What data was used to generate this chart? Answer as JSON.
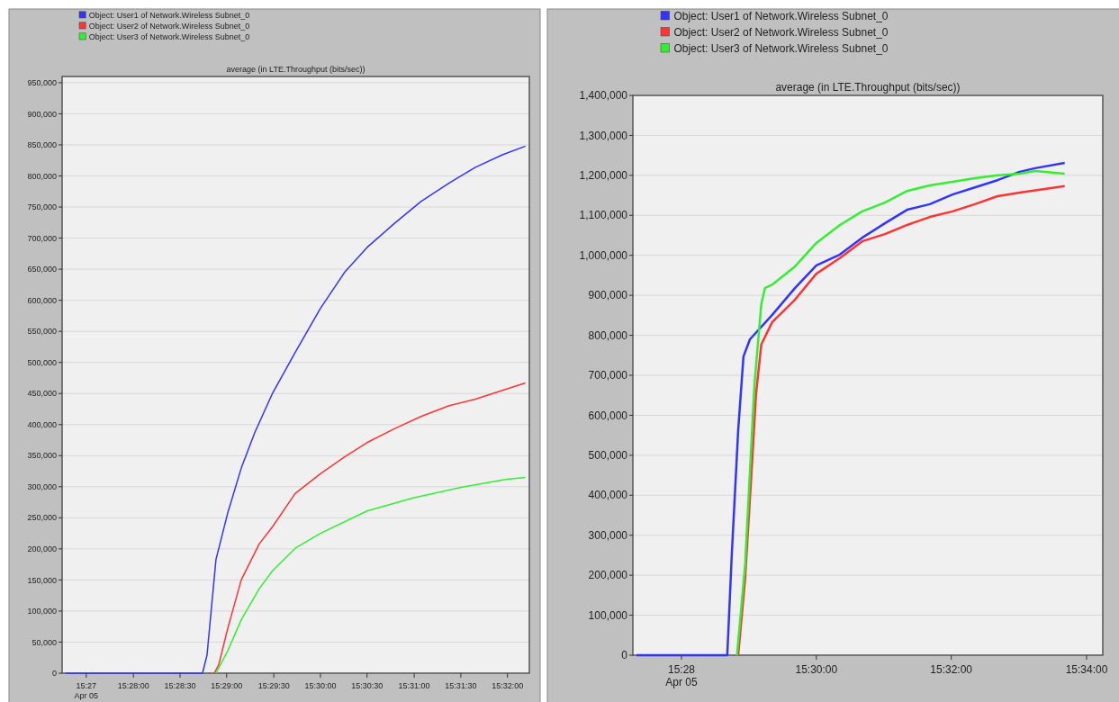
{
  "chart_data": [
    {
      "type": "line",
      "title": "average (in LTE.Throughput (bits/sec))",
      "legend": "top",
      "grid": "y",
      "marker": "none",
      "line_style": "solid",
      "xlim": [
        15.454,
        15.5372
      ],
      "ylim": [
        0,
        960000
      ],
      "xticks": [
        {
          "value": 15.4583,
          "label": "15:27\nApr 05"
        },
        {
          "value": 15.4667,
          "label": "15:28:00"
        },
        {
          "value": 15.475,
          "label": "15:28:30"
        },
        {
          "value": 15.4833,
          "label": "15:29:00"
        },
        {
          "value": 15.4917,
          "label": "15:29:30"
        },
        {
          "value": 15.5,
          "label": "15:30:00"
        },
        {
          "value": 15.5083,
          "label": "15:30:30"
        },
        {
          "value": 15.5167,
          "label": "15:31:00"
        },
        {
          "value": 15.525,
          "label": "15:31:30"
        },
        {
          "value": 15.5333,
          "label": "15:32:00"
        }
      ],
      "yticks": [
        0,
        {
          "value": 50000,
          "label": "50,000"
        },
        {
          "value": 100000,
          "label": "100,000"
        },
        {
          "value": 150000,
          "label": "150,000"
        },
        {
          "value": 200000,
          "label": "200,000"
        },
        {
          "value": 250000,
          "label": "250,000"
        },
        {
          "value": 300000,
          "label": "300,000"
        },
        {
          "value": 350000,
          "label": "350,000"
        },
        {
          "value": 400000,
          "label": "400,000"
        },
        {
          "value": 450000,
          "label": "450,000"
        },
        {
          "value": 500000,
          "label": "500,000"
        },
        {
          "value": 550000,
          "label": "550,000"
        },
        {
          "value": 600000,
          "label": "600,000"
        },
        {
          "value": 650000,
          "label": "650,000"
        },
        {
          "value": 700000,
          "label": "700,000"
        },
        {
          "value": 750000,
          "label": "750,000"
        },
        {
          "value": 800000,
          "label": "800,000"
        },
        {
          "value": 850000,
          "label": "850,000"
        },
        {
          "value": 900000,
          "label": "900,000"
        },
        {
          "value": 950000,
          "label": "950,000"
        }
      ],
      "series": [
        {
          "name": "Object: User1 of Network.Wireless Subnet_0",
          "color": "#3333ff",
          "x": [
            15.4546,
            15.479,
            15.4798,
            15.4814,
            15.4835,
            15.4859,
            15.4883,
            15.4915,
            15.4955,
            15.5,
            15.5043,
            15.5083,
            15.5131,
            15.5179,
            15.5228,
            15.5276,
            15.5324,
            15.5365
          ],
          "values": [
            0,
            0,
            29000,
            183000,
            258000,
            330000,
            387000,
            451000,
            516000,
            587000,
            645000,
            685000,
            723000,
            759000,
            788000,
            814000,
            834000,
            848000
          ]
        },
        {
          "name": "Object: User2 of Network.Wireless Subnet_0",
          "color": "#ff3333",
          "x": [
            15.4811,
            15.4819,
            15.4835,
            15.4859,
            15.4891,
            15.4915,
            15.4955,
            15.5,
            15.5043,
            15.5083,
            15.5131,
            15.5179,
            15.5228,
            15.5276,
            15.5324,
            15.5365
          ],
          "values": [
            0,
            14000,
            72000,
            150000,
            208000,
            236000,
            289000,
            321000,
            348000,
            371000,
            393000,
            413000,
            430000,
            441000,
            455000,
            467000
          ]
        },
        {
          "name": "Object: User3 of Network.Wireless Subnet_0",
          "color": "#33ee33",
          "x": [
            15.4814,
            15.4835,
            15.4859,
            15.4891,
            15.4915,
            15.4955,
            15.5,
            15.5083,
            15.5165,
            15.525,
            15.5332,
            15.5365
          ],
          "values": [
            0,
            36000,
            86000,
            136000,
            165000,
            201000,
            225000,
            261000,
            282000,
            299000,
            312000,
            315000
          ]
        }
      ]
    },
    {
      "type": "line",
      "title": "average (in LTE.Throughput (bits/sec))",
      "legend": "top",
      "grid": "y",
      "marker": "none",
      "line_style": "solid",
      "xlim": [
        15.4547,
        15.5707
      ],
      "ylim": [
        0,
        1400000
      ],
      "xticks": [
        {
          "value": 15.4667,
          "label": "15:28\nApr 05"
        },
        {
          "value": 15.5,
          "label": "15:30:00"
        },
        {
          "value": 15.5333,
          "label": "15:32:00"
        },
        {
          "value": 15.5667,
          "label": "15:34:00"
        }
      ],
      "yticks": [
        0,
        {
          "value": 100000,
          "label": "100,000"
        },
        {
          "value": 200000,
          "label": "200,000"
        },
        {
          "value": 300000,
          "label": "300,000"
        },
        {
          "value": 400000,
          "label": "400,000"
        },
        {
          "value": 500000,
          "label": "500,000"
        },
        {
          "value": 600000,
          "label": "600,000"
        },
        {
          "value": 700000,
          "label": "700,000"
        },
        {
          "value": 800000,
          "label": "800,000"
        },
        {
          "value": 900000,
          "label": "900,000"
        },
        {
          "value": 1000000,
          "label": "1,000,000"
        },
        {
          "value": 1100000,
          "label": "1,100,000"
        },
        {
          "value": 1200000,
          "label": "1,200,000"
        },
        {
          "value": 1300000,
          "label": "1,300,000"
        },
        {
          "value": 1400000,
          "label": "1,400,000"
        }
      ],
      "series": [
        {
          "name": "Object: User1 of Network.Wireless Subnet_0",
          "color": "#3333ff",
          "x": [
            15.4556,
            15.478,
            15.4791,
            15.4807,
            15.482,
            15.4836,
            15.4891,
            15.4947,
            15.5,
            15.5058,
            15.5113,
            15.5169,
            15.5224,
            15.528,
            15.5336,
            15.5391,
            15.5447,
            15.5502,
            15.554,
            15.5613
          ],
          "values": [
            0,
            0,
            248000,
            563000,
            747000,
            790000,
            851000,
            918000,
            975000,
            1002000,
            1044000,
            1080000,
            1114000,
            1128000,
            1152000,
            1170000,
            1188000,
            1209000,
            1218000,
            1231000
          ]
        },
        {
          "name": "Object: User2 of Network.Wireless Subnet_0",
          "color": "#ff3333",
          "x": [
            15.4807,
            15.4824,
            15.4842,
            15.4851,
            15.4864,
            15.4891,
            15.4947,
            15.5,
            15.5058,
            15.5113,
            15.5169,
            15.5224,
            15.528,
            15.5336,
            15.5391,
            15.5447,
            15.5502,
            15.5613
          ],
          "values": [
            0,
            190000,
            495000,
            653000,
            777000,
            833000,
            889000,
            954000,
            993000,
            1035000,
            1053000,
            1076000,
            1096000,
            1110000,
            1128000,
            1148000,
            1157000,
            1173000
          ]
        },
        {
          "name": "Object: User3 of Network.Wireless Subnet_0",
          "color": "#33ee33",
          "x": [
            15.4804,
            15.4824,
            15.4847,
            15.4864,
            15.4873,
            15.4891,
            15.4947,
            15.5,
            15.5058,
            15.5113,
            15.5169,
            15.5224,
            15.528,
            15.5336,
            15.5391,
            15.5447,
            15.5502,
            15.554,
            15.5613
          ],
          "values": [
            0,
            225000,
            675000,
            878000,
            918000,
            927000,
            972000,
            1031000,
            1076000,
            1110000,
            1132000,
            1161000,
            1175000,
            1184000,
            1193000,
            1200000,
            1204000,
            1211000,
            1204000
          ]
        }
      ]
    }
  ]
}
